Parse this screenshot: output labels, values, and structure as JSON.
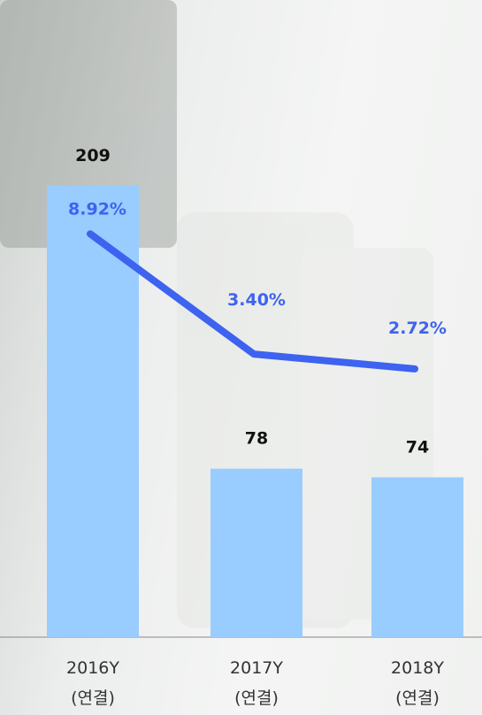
{
  "chart_data": {
    "type": "bar",
    "categories": [
      "2016Y\n(연결)",
      "2017Y\n(연결)",
      "2018Y\n(연결)"
    ],
    "series": [
      {
        "type": "bar",
        "color": "#99ccff",
        "values": [
          209,
          78,
          74
        ]
      },
      {
        "type": "line",
        "axis": "y2",
        "color": "#3d63f0",
        "values": [
          8.92,
          3.4,
          2.72
        ],
        "value_labels": [
          "8.92%",
          "3.40%",
          "2.72%"
        ]
      }
    ],
    "ylim": [
      0,
      295
    ],
    "y2lim": [
      -9.6,
      19.66
    ]
  }
}
